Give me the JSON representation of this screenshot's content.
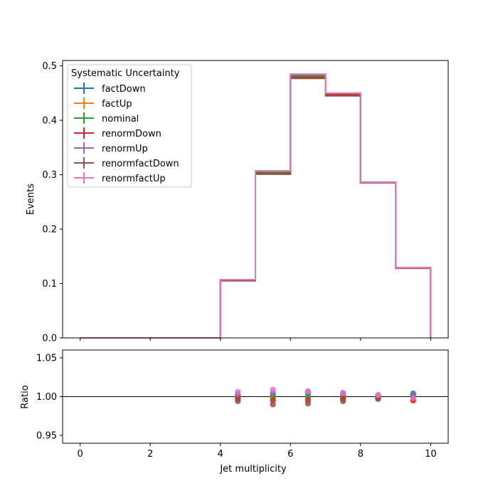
{
  "chart_data": [
    {
      "type": "line",
      "step": true,
      "xlabel": "",
      "ylabel": "Events",
      "xlim": [
        -0.5,
        10.5
      ],
      "ylim": [
        0,
        0.51
      ],
      "x_ticks": [
        "0",
        "2",
        "4",
        "6",
        "8",
        "10"
      ],
      "x_tick_values": [
        0,
        2,
        4,
        6,
        8,
        10
      ],
      "y_ticks": [
        "0.0",
        "0.1",
        "0.2",
        "0.3",
        "0.4",
        "0.5"
      ],
      "y_tick_values": [
        0,
        0.1,
        0.2,
        0.3,
        0.4,
        0.5
      ],
      "bin_edges": [
        0,
        1,
        2,
        3,
        4,
        5,
        6,
        7,
        8,
        9,
        10
      ],
      "legend": {
        "title": "Systematic Uncertainty",
        "placement": "upper-left"
      },
      "series": [
        {
          "name": "factDown",
          "color": "#1f77b4",
          "values": [
            0,
            0,
            0,
            0,
            0.107,
            0.305,
            0.483,
            0.449,
            0.286,
            0.129
          ]
        },
        {
          "name": "factUp",
          "color": "#ff7f0e",
          "values": [
            0,
            0,
            0,
            0,
            0.106,
            0.304,
            0.481,
            0.448,
            0.285,
            0.128
          ]
        },
        {
          "name": "nominal",
          "color": "#2ca02c",
          "values": [
            0,
            0,
            0,
            0,
            0.106,
            0.304,
            0.481,
            0.448,
            0.286,
            0.129
          ]
        },
        {
          "name": "renormDown",
          "color": "#d62728",
          "values": [
            0,
            0,
            0,
            0,
            0.106,
            0.302,
            0.479,
            0.447,
            0.285,
            0.128
          ]
        },
        {
          "name": "renormUp",
          "color": "#9467bd",
          "values": [
            0,
            0,
            0,
            0,
            0.107,
            0.307,
            0.484,
            0.45,
            0.286,
            0.129
          ]
        },
        {
          "name": "renormfactDown",
          "color": "#8c564b",
          "values": [
            0,
            0,
            0,
            0,
            0.105,
            0.301,
            0.477,
            0.445,
            0.285,
            0.129
          ]
        },
        {
          "name": "renormfactUp",
          "color": "#e377c2",
          "values": [
            0,
            0,
            0,
            0,
            0.107,
            0.307,
            0.485,
            0.45,
            0.286,
            0.129
          ]
        }
      ]
    },
    {
      "type": "scatter",
      "xlabel": "Jet multiplicity",
      "ylabel": "Ratio",
      "xlim": [
        -0.5,
        10.5
      ],
      "ylim": [
        0.94,
        1.06
      ],
      "reference_line": 1.0,
      "x_ticks": [
        "0",
        "2",
        "4",
        "6",
        "8",
        "10"
      ],
      "x_tick_values": [
        0,
        2,
        4,
        6,
        8,
        10
      ],
      "y_ticks": [
        "0.95",
        "1.00",
        "1.05"
      ],
      "y_tick_values": [
        0.95,
        1.0,
        1.05
      ],
      "x": [
        4.5,
        5.5,
        6.5,
        7.5,
        8.5,
        9.5
      ],
      "series": [
        {
          "name": "factDown",
          "color": "#1f77b4",
          "values": [
            1.002,
            1.003,
            1.004,
            1.003,
            1.001,
            1.004
          ]
        },
        {
          "name": "factUp",
          "color": "#ff7f0e",
          "values": [
            0.998,
            0.998,
            0.999,
            0.998,
            0.999,
            0.996
          ]
        },
        {
          "name": "nominal",
          "color": "#2ca02c",
          "values": [
            1.0,
            1.0,
            1.0,
            1.0,
            1.0,
            1.0
          ]
        },
        {
          "name": "renormDown",
          "color": "#d62728",
          "values": [
            0.997,
            0.995,
            0.995,
            0.997,
            0.998,
            0.995
          ]
        },
        {
          "name": "renormUp",
          "color": "#9467bd",
          "values": [
            1.003,
            1.005,
            1.006,
            1.004,
            1.002,
            1.001
          ]
        },
        {
          "name": "renormfactDown",
          "color": "#8c564b",
          "values": [
            0.994,
            0.99,
            0.991,
            0.994,
            0.997,
            1.0
          ]
        },
        {
          "name": "renormfactUp",
          "color": "#e377c2",
          "values": [
            1.006,
            1.009,
            1.007,
            1.005,
            1.002,
            0.998
          ]
        }
      ]
    }
  ]
}
